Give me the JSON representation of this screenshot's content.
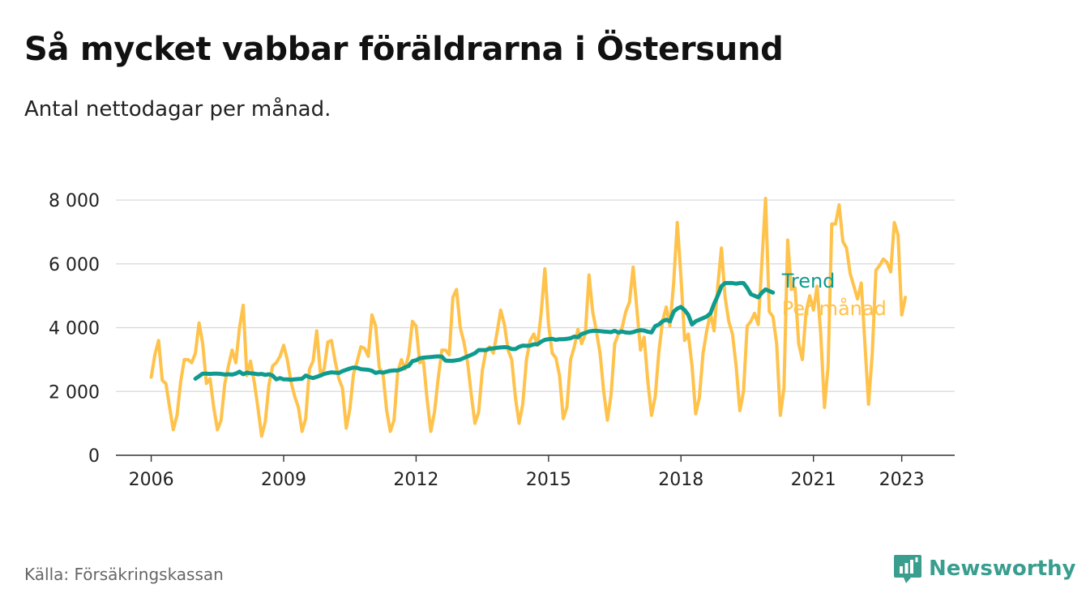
{
  "title": "Så mycket vabbar föräldrarna i Östersund",
  "subtitle": "Antal nettodagar per månad.",
  "source": "Källa: Försäkringskassan",
  "brand": {
    "name": "Newsworthy",
    "icon": "newsworthy-logo-icon",
    "color": "#3a9e8f"
  },
  "chart_data": {
    "type": "line",
    "title": "Så mycket vabbar föräldrarna i Östersund",
    "subtitle": "Antal nettodagar per månad.",
    "xlabel": "",
    "ylabel": "",
    "ylim": [
      0,
      8000
    ],
    "xlim": [
      2005.2,
      2024.2
    ],
    "y_ticks": [
      0,
      2000,
      4000,
      6000,
      8000
    ],
    "y_tick_labels": [
      "0",
      "2 000",
      "4 000",
      "6 000",
      "8 000"
    ],
    "x_ticks": [
      2006,
      2009,
      2012,
      2015,
      2018,
      2021,
      2023
    ],
    "x_tick_labels": [
      "2006",
      "2009",
      "2012",
      "2015",
      "2018",
      "2021",
      "2023"
    ],
    "grid": true,
    "legend": "right end of lines",
    "series": [
      {
        "name": "Per månad",
        "color": "#ffc24b",
        "x_start": 2006.0,
        "step": 0.08333,
        "values": [
          2450,
          3150,
          3600,
          2350,
          2250,
          1500,
          800,
          1250,
          2300,
          3000,
          3000,
          2900,
          3200,
          4150,
          3500,
          2250,
          2400,
          1500,
          800,
          1100,
          2250,
          2800,
          3300,
          2900,
          4000,
          4700,
          2500,
          2950,
          2300,
          1500,
          600,
          1050,
          2200,
          2800,
          2900,
          3100,
          3450,
          3000,
          2300,
          1850,
          1500,
          750,
          1150,
          2700,
          2950,
          3900,
          2550,
          2700,
          3550,
          3600,
          2950,
          2400,
          2100,
          850,
          1450,
          2550,
          2950,
          3400,
          3350,
          3100,
          4400,
          4050,
          2750,
          2550,
          1400,
          750,
          1100,
          2600,
          3000,
          2700,
          3150,
          4200,
          4050,
          2900,
          2950,
          1750,
          750,
          1350,
          2400,
          3300,
          3300,
          3150,
          4950,
          5200,
          4000,
          3550,
          2900,
          1900,
          1000,
          1350,
          2650,
          3300,
          3400,
          3200,
          3850,
          4550,
          4100,
          3300,
          3000,
          1800,
          1000,
          1600,
          3000,
          3600,
          3800,
          3450,
          4450,
          5850,
          4100,
          3200,
          3050,
          2500,
          1150,
          1500,
          3000,
          3400,
          3950,
          3500,
          3800,
          5650,
          4500,
          3900,
          3200,
          2000,
          1100,
          1900,
          3500,
          3800,
          4000,
          4500,
          4800,
          5900,
          4600,
          3300,
          3700,
          2300,
          1250,
          1850,
          3250,
          4200,
          4650,
          4050,
          5400,
          7300,
          5600,
          3600,
          3800,
          2800,
          1300,
          1800,
          3200,
          3900,
          4450,
          3900,
          5300,
          6500,
          4950,
          4200,
          3800,
          2800,
          1400,
          2000,
          4050,
          4200,
          4450,
          4100,
          6050,
          8050,
          4500,
          4350,
          3500,
          1250,
          2100,
          6750,
          5200,
          5250,
          3500,
          3000,
          4500,
          5000,
          4550,
          5300,
          3800,
          1500,
          2800,
          7250,
          7250,
          7850,
          6700,
          6500,
          5700,
          5300,
          4900,
          5400,
          3500,
          1600,
          3200,
          5800,
          5950,
          6150,
          6050,
          5750,
          7300,
          6900,
          4400,
          4950
        ]
      },
      {
        "name": "Trend",
        "color": "#0f9b8e",
        "x_start": 2007.0,
        "step": 0.08333,
        "values": [
          2400,
          2480,
          2560,
          2560,
          2550,
          2560,
          2560,
          2550,
          2530,
          2540,
          2530,
          2560,
          2620,
          2540,
          2590,
          2570,
          2560,
          2540,
          2550,
          2520,
          2540,
          2500,
          2380,
          2420,
          2380,
          2380,
          2370,
          2380,
          2390,
          2400,
          2500,
          2450,
          2420,
          2460,
          2500,
          2550,
          2580,
          2600,
          2590,
          2580,
          2640,
          2680,
          2720,
          2750,
          2740,
          2700,
          2690,
          2680,
          2650,
          2580,
          2610,
          2590,
          2620,
          2650,
          2660,
          2660,
          2700,
          2760,
          2800,
          2950,
          2980,
          3040,
          3060,
          3070,
          3080,
          3090,
          3100,
          3090,
          2970,
          2960,
          2960,
          2980,
          3000,
          3050,
          3100,
          3150,
          3200,
          3300,
          3300,
          3300,
          3340,
          3350,
          3370,
          3380,
          3390,
          3380,
          3330,
          3330,
          3400,
          3440,
          3430,
          3440,
          3480,
          3480,
          3560,
          3620,
          3640,
          3650,
          3620,
          3640,
          3640,
          3650,
          3670,
          3720,
          3700,
          3800,
          3840,
          3880,
          3900,
          3900,
          3890,
          3880,
          3870,
          3860,
          3900,
          3850,
          3880,
          3850,
          3840,
          3860,
          3900,
          3920,
          3910,
          3870,
          3850,
          4050,
          4100,
          4200,
          4250,
          4200,
          4500,
          4600,
          4650,
          4550,
          4400,
          4100,
          4200,
          4250,
          4300,
          4350,
          4450,
          4750,
          5000,
          5300,
          5400,
          5400,
          5400,
          5380,
          5400,
          5400,
          5250,
          5050,
          5000,
          4950,
          5100,
          5200,
          5150,
          5100
        ]
      }
    ]
  }
}
